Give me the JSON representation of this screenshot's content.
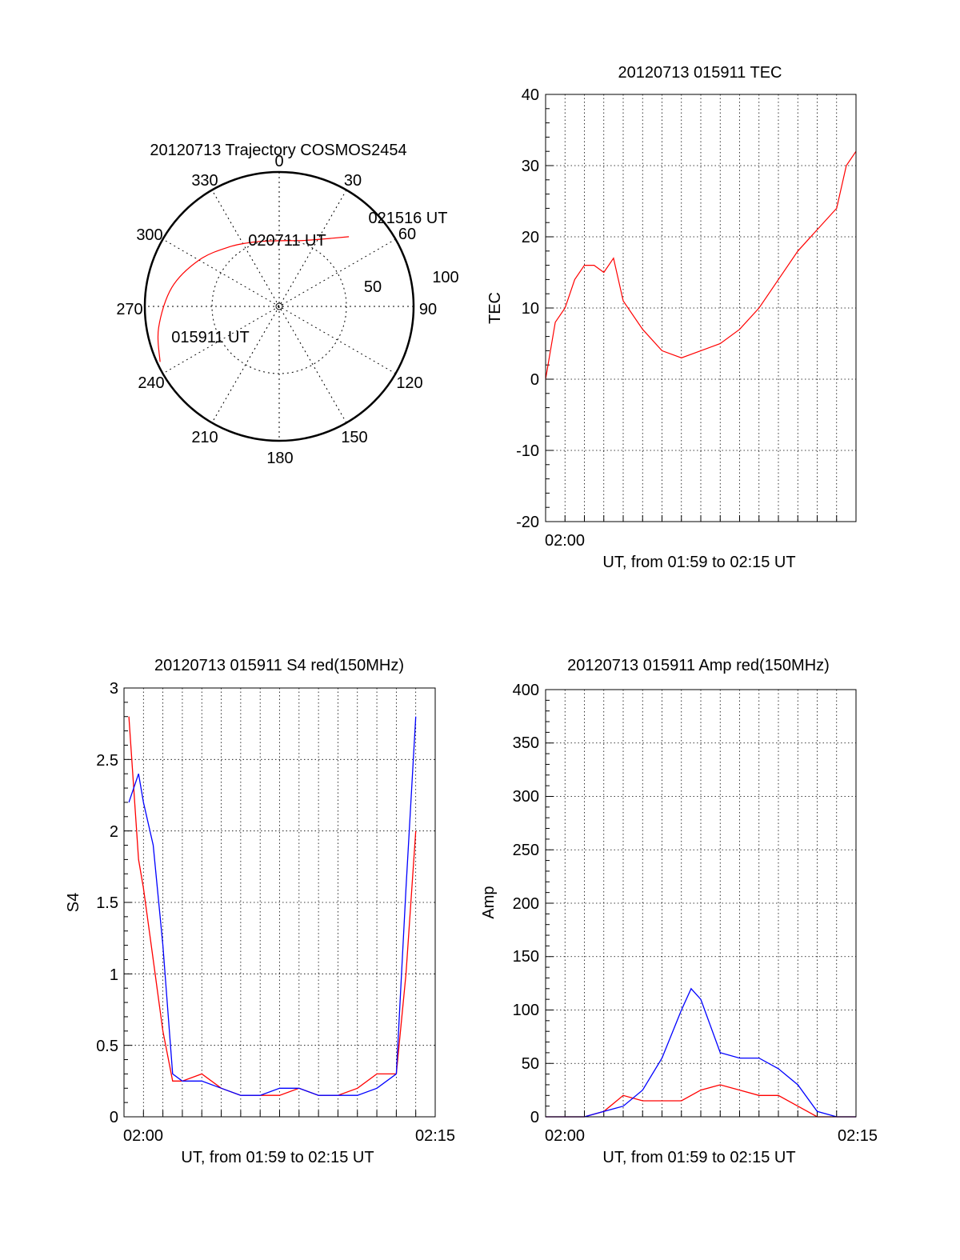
{
  "colors": {
    "red": "#ff0000",
    "blue": "#0000ff",
    "axis": "#000000"
  },
  "chart_data": [
    {
      "id": "trajectory",
      "type": "polar",
      "title": "20120713 Trajectory COSMOS2454",
      "angle_labels": [
        "0",
        "30",
        "60",
        "90",
        "120",
        "150",
        "180",
        "210",
        "240",
        "270",
        "300",
        "330"
      ],
      "radial_labels": [
        "50",
        "100"
      ],
      "point_labels": [
        "021516 UT",
        "020711 UT",
        "015911 UT"
      ],
      "series": [
        {
          "color": "red",
          "points": [
            [
              245,
              88
            ],
            [
              260,
              82
            ],
            [
              280,
              73
            ],
            [
              300,
              62
            ],
            [
              320,
              52
            ],
            [
              340,
              46
            ],
            [
              0,
              44
            ],
            [
              20,
              47
            ],
            [
              37,
              57
            ],
            [
              45,
              66
            ]
          ]
        }
      ]
    },
    {
      "id": "tec",
      "type": "line",
      "title": "20120713 015911 TEC",
      "xlabel": "UT, from 01:59 to 02:15 UT",
      "ylabel": "TEC",
      "xlim": [
        "01:59",
        "02:15"
      ],
      "ylim": [
        -20,
        40
      ],
      "yticks": [
        "-20",
        "-10",
        "0",
        "10",
        "20",
        "30",
        "40"
      ],
      "xticks": [
        "02:00"
      ],
      "series": [
        {
          "color": "red",
          "x": [
            "01:59",
            "01:59:30",
            "02:00",
            "02:00:30",
            "02:01",
            "02:01:30",
            "02:02",
            "02:02:30",
            "02:03",
            "02:04",
            "02:05",
            "02:06",
            "02:07",
            "02:08",
            "02:09",
            "02:10",
            "02:11",
            "02:12",
            "02:13",
            "02:14",
            "02:14:30",
            "02:15"
          ],
          "y": [
            0,
            8,
            10,
            14,
            16,
            16,
            15,
            17,
            11,
            7,
            4,
            3,
            4,
            5,
            7,
            10,
            14,
            18,
            21,
            24,
            30,
            32
          ]
        }
      ]
    },
    {
      "id": "s4",
      "type": "line",
      "title": "20120713 015911 S4 red(150MHz)",
      "xlabel": "UT, from 01:59 to 02:15 UT",
      "ylabel": "S4",
      "xlim": [
        "01:59",
        "02:15"
      ],
      "ylim": [
        0,
        3
      ],
      "yticks": [
        "0",
        "0.5",
        "1",
        "1.5",
        "2",
        "2.5",
        "3"
      ],
      "xticks": [
        "02:00",
        "02:15"
      ],
      "series": [
        {
          "color": "red",
          "x": [
            "01:59:15",
            "01:59:45",
            "02:00",
            "02:00:30",
            "02:01",
            "02:01:30",
            "02:02",
            "02:03",
            "02:04",
            "02:05",
            "02:06",
            "02:07",
            "02:08",
            "02:09",
            "02:10",
            "02:11",
            "02:12",
            "02:13",
            "02:13:30",
            "02:14"
          ],
          "y": [
            2.8,
            1.8,
            1.6,
            1.1,
            0.6,
            0.25,
            0.25,
            0.3,
            0.2,
            0.15,
            0.15,
            0.15,
            0.2,
            0.15,
            0.15,
            0.2,
            0.3,
            0.3,
            1.0,
            2.0
          ]
        },
        {
          "color": "blue",
          "x": [
            "01:59:15",
            "01:59:45",
            "02:00",
            "02:00:30",
            "02:01",
            "02:01:30",
            "02:02",
            "02:03",
            "02:04",
            "02:05",
            "02:06",
            "02:07",
            "02:08",
            "02:09",
            "02:10",
            "02:11",
            "02:12",
            "02:13",
            "02:13:30",
            "02:14"
          ],
          "y": [
            2.2,
            2.4,
            2.2,
            1.9,
            1.2,
            0.3,
            0.25,
            0.25,
            0.2,
            0.15,
            0.15,
            0.2,
            0.2,
            0.15,
            0.15,
            0.15,
            0.2,
            0.3,
            1.6,
            2.8
          ]
        }
      ]
    },
    {
      "id": "amp",
      "type": "line",
      "title": "20120713 015911 Amp red(150MHz)",
      "xlabel": "UT, from 01:59 to 02:15 UT",
      "ylabel": "Amp",
      "xlim": [
        "01:59",
        "02:15"
      ],
      "ylim": [
        0,
        400
      ],
      "yticks": [
        "0",
        "50",
        "100",
        "150",
        "200",
        "250",
        "300",
        "350",
        "400"
      ],
      "xticks": [
        "02:00",
        "02:15"
      ],
      "series": [
        {
          "color": "red",
          "x": [
            "01:59",
            "02:00",
            "02:01",
            "02:02",
            "02:03",
            "02:04",
            "02:05",
            "02:06",
            "02:07",
            "02:08",
            "02:09",
            "02:10",
            "02:11",
            "02:12",
            "02:13",
            "02:14",
            "02:15"
          ],
          "y": [
            0,
            0,
            0,
            5,
            20,
            15,
            15,
            15,
            25,
            30,
            25,
            20,
            20,
            10,
            0,
            0,
            0
          ]
        },
        {
          "color": "blue",
          "x": [
            "01:59",
            "02:00",
            "02:01",
            "02:02",
            "02:03",
            "02:04",
            "02:05",
            "02:06",
            "02:06:30",
            "02:07",
            "02:08",
            "02:09",
            "02:10",
            "02:11",
            "02:12",
            "02:13",
            "02:14",
            "02:15"
          ],
          "y": [
            0,
            0,
            0,
            5,
            10,
            25,
            55,
            100,
            120,
            110,
            60,
            55,
            55,
            45,
            30,
            5,
            0,
            0
          ]
        }
      ]
    }
  ]
}
